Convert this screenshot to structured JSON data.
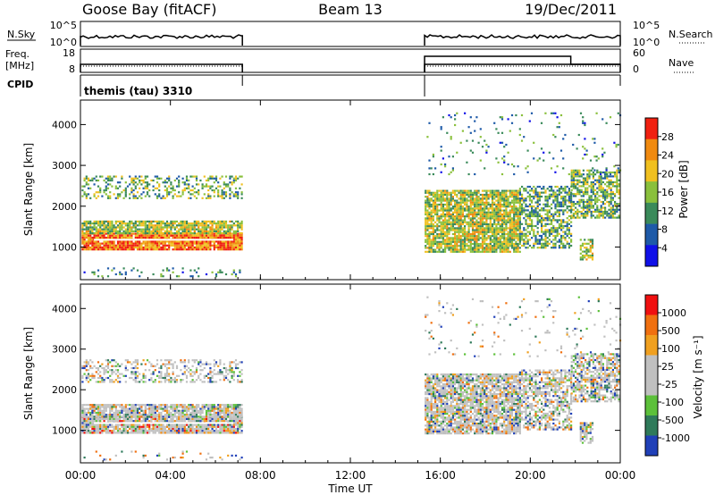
{
  "header": {
    "station": "Goose Bay (fitACF)",
    "beam": "Beam 13",
    "date": "19/Dec/2011"
  },
  "nsky": {
    "left_label": "N.Sky",
    "right_label": "N.Search",
    "left_ticks": [
      "10^5",
      "10^0"
    ],
    "right_ticks": [
      "10^5",
      "10^0"
    ]
  },
  "freq": {
    "left_label_1": "Freq.",
    "left_label_2": "[MHz]",
    "right_label": "Nave",
    "left_ticks": [
      "18",
      "8"
    ],
    "right_ticks": [
      "60",
      "0"
    ]
  },
  "cpid": {
    "label": "CPID",
    "mode": "themis (tau) 3310"
  },
  "operation": {
    "segments_hours": [
      [
        0,
        7.2
      ],
      [
        15.3,
        24
      ]
    ]
  },
  "chart_data": [
    {
      "type": "heatmap",
      "name": "power",
      "ylabel": "Slant Range [km]",
      "ylim": [
        200,
        4600
      ],
      "yticks": [
        "1000",
        "2000",
        "3000",
        "4000"
      ],
      "xlim": [
        0,
        24
      ],
      "colorbar_label": "Power [dB]",
      "colorbar_ticks": [
        "4",
        "8",
        "12",
        "16",
        "20",
        "24",
        "28"
      ],
      "colors": [
        "#1010e8",
        "#1e5aa8",
        "#3a8a5a",
        "#8ac03c",
        "#f0c020",
        "#f08a10",
        "#f02010"
      ]
    },
    {
      "type": "heatmap",
      "name": "velocity",
      "ylabel": "Slant Range [km]",
      "ylim": [
        200,
        4600
      ],
      "yticks": [
        "1000",
        "2000",
        "3000",
        "4000"
      ],
      "xlim": [
        0,
        24
      ],
      "colorbar_label": "Velocity [m s⁻¹]",
      "colorbar_ticks": [
        "1000",
        "500",
        "100",
        "25",
        "-25",
        "-100",
        "-500",
        "-1000"
      ],
      "colors": [
        "#2040b8",
        "#2f7a5a",
        "#5cc03a",
        "#c0c0c0",
        "#c0c0c0",
        "#f0a020",
        "#f07010",
        "#f01010"
      ]
    }
  ],
  "xaxis": {
    "label": "Time UT",
    "ticks": [
      "00:00",
      "04:00",
      "08:00",
      "12:00",
      "16:00",
      "20:00",
      "00:00"
    ]
  }
}
